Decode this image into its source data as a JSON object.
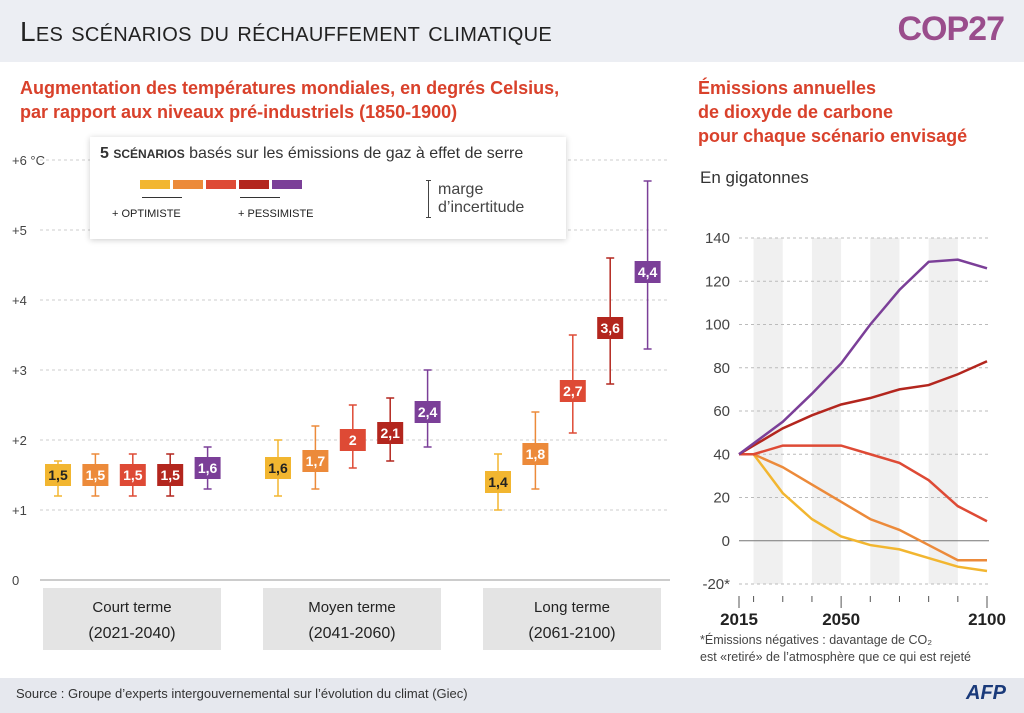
{
  "header": {
    "title": "Les scénarios du réchauffement climatique",
    "logo": "COP27"
  },
  "left": {
    "subtitle_1": "Augmentation des températures mondiales, en degrés Celsius,",
    "subtitle_2": "par rapport aux niveaux pré-industriels (1850-1900)"
  },
  "legend": {
    "count": "5",
    "scenarios": "SCÉNARIOS",
    "text": "basés sur les émissions de gaz à effet de serre",
    "optimist": "+ OPTIMISTE",
    "pessimist": "+ PESSIMISTE",
    "margin_1": "marge",
    "margin_2": "d’incertitude"
  },
  "right": {
    "subtitle_1": "Émissions annuelles",
    "subtitle_2": "de dioxyde de carbone",
    "subtitle_3": "pour chaque scénario envisagé",
    "unit": "En gigatonnes",
    "note_1": "*Émissions négatives : davantage de CO₂",
    "note_2": "est «retiré» de l’atmosphère que ce qui est rejeté"
  },
  "footer": {
    "source": "Source : Groupe d’experts intergouvernemental sur l’évolution du climat (Giec)",
    "afp": "AFP"
  },
  "colors": [
    "#f2b630",
    "#ec8a3a",
    "#de4a35",
    "#b3261e",
    "#7b3f98"
  ],
  "chart_data": [
    {
      "type": "bar",
      "ylim": [
        0,
        6
      ],
      "ytick_labels": [
        "0",
        "+1",
        "+2",
        "+3",
        "+4",
        "+5",
        "+6 °C"
      ],
      "yticks": [
        0,
        1,
        2,
        3,
        4,
        5,
        6
      ],
      "groups": [
        {
          "label_1": "Court terme",
          "label_2": "(2021-2040)",
          "values": [
            1.5,
            1.5,
            1.5,
            1.5,
            1.6
          ],
          "labels": [
            "1,5",
            "1,5",
            "1,5",
            "1,5",
            "1,6"
          ],
          "low": [
            1.2,
            1.2,
            1.2,
            1.2,
            1.3
          ],
          "high": [
            1.7,
            1.8,
            1.8,
            1.8,
            1.9
          ]
        },
        {
          "label_1": "Moyen terme",
          "label_2": "(2041-2060)",
          "values": [
            1.6,
            1.7,
            2,
            2.1,
            2.4
          ],
          "labels": [
            "1,6",
            "1,7",
            "2",
            "2,1",
            "2,4"
          ],
          "low": [
            1.2,
            1.3,
            1.6,
            1.7,
            1.9
          ],
          "high": [
            2.0,
            2.2,
            2.5,
            2.6,
            3.0
          ]
        },
        {
          "label_1": "Long terme",
          "label_2": "(2061-2100)",
          "values": [
            1.4,
            1.8,
            2.7,
            3.6,
            4.4
          ],
          "labels": [
            "1,4",
            "1,8",
            "2,7",
            "3,6",
            "4,4"
          ],
          "low": [
            1.0,
            1.3,
            2.1,
            2.8,
            3.3
          ],
          "high": [
            1.8,
            2.4,
            3.5,
            4.6,
            5.7
          ]
        }
      ]
    },
    {
      "type": "line",
      "xlim": [
        2015,
        2100
      ],
      "ylim": [
        -20,
        140
      ],
      "ytick_labels": [
        "-20*",
        "0",
        "20",
        "40",
        "60",
        "80",
        "100",
        "120",
        "140"
      ],
      "yticks": [
        -20,
        0,
        20,
        40,
        60,
        80,
        100,
        120,
        140
      ],
      "xtick_labels": [
        "2015",
        "2050",
        "2100"
      ],
      "x": [
        2015,
        2020,
        2030,
        2040,
        2050,
        2060,
        2070,
        2080,
        2090,
        2100
      ],
      "series": [
        {
          "values": [
            40,
            40,
            22,
            10,
            2,
            -2,
            -4,
            -8,
            -12,
            -14
          ]
        },
        {
          "values": [
            40,
            40,
            34,
            26,
            18,
            10,
            5,
            -2,
            -9,
            -9
          ]
        },
        {
          "values": [
            40,
            40,
            44,
            44,
            44,
            40,
            36,
            28,
            16,
            9
          ]
        },
        {
          "values": [
            40,
            44,
            52,
            58,
            63,
            66,
            70,
            72,
            77,
            83
          ]
        },
        {
          "values": [
            40,
            45,
            55,
            68,
            82,
            100,
            116,
            129,
            130,
            126
          ]
        }
      ]
    }
  ]
}
